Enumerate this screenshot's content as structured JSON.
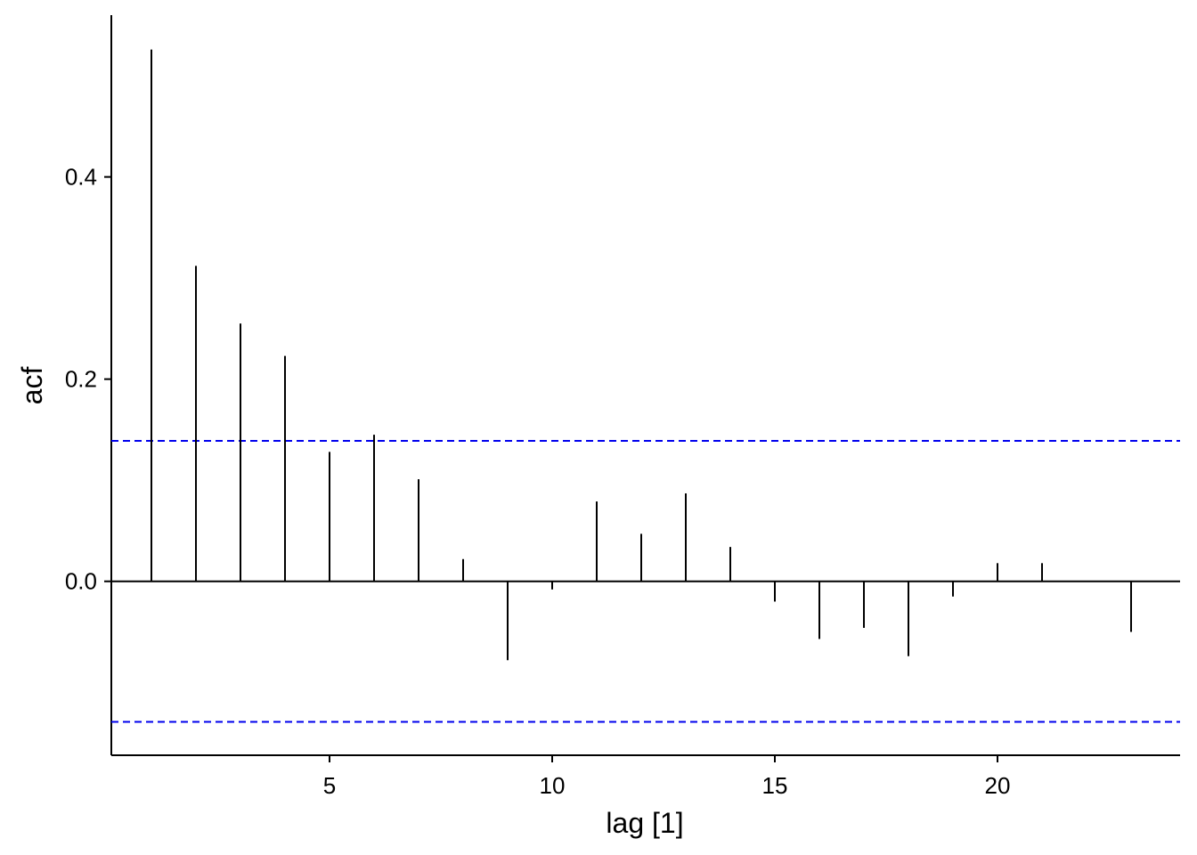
{
  "chart_data": {
    "type": "bar",
    "xlabel": "lag [1]",
    "ylabel": "acf",
    "xlim": [
      0.1,
      24.1
    ],
    "ylim": [
      -0.172,
      0.56
    ],
    "x_ticks": [
      5,
      10,
      15,
      20
    ],
    "y_ticks": [
      0.0,
      0.2,
      0.4
    ],
    "y_tick_labels": [
      "0.0",
      "0.2",
      "0.4"
    ],
    "x": [
      1,
      2,
      3,
      4,
      5,
      6,
      7,
      8,
      9,
      10,
      11,
      12,
      13,
      14,
      15,
      16,
      17,
      18,
      19,
      20,
      21,
      23
    ],
    "values": [
      0.526,
      0.312,
      0.255,
      0.223,
      0.128,
      0.145,
      0.101,
      0.022,
      -0.078,
      -0.008,
      0.079,
      0.047,
      0.087,
      0.034,
      -0.02,
      -0.057,
      -0.046,
      -0.074,
      -0.015,
      0.018,
      0.018,
      -0.05
    ],
    "confidence_bound": 0.139,
    "colors": {
      "bars": "#000000",
      "confidence": "#0000ee",
      "axis": "#000000"
    },
    "grid": false
  }
}
